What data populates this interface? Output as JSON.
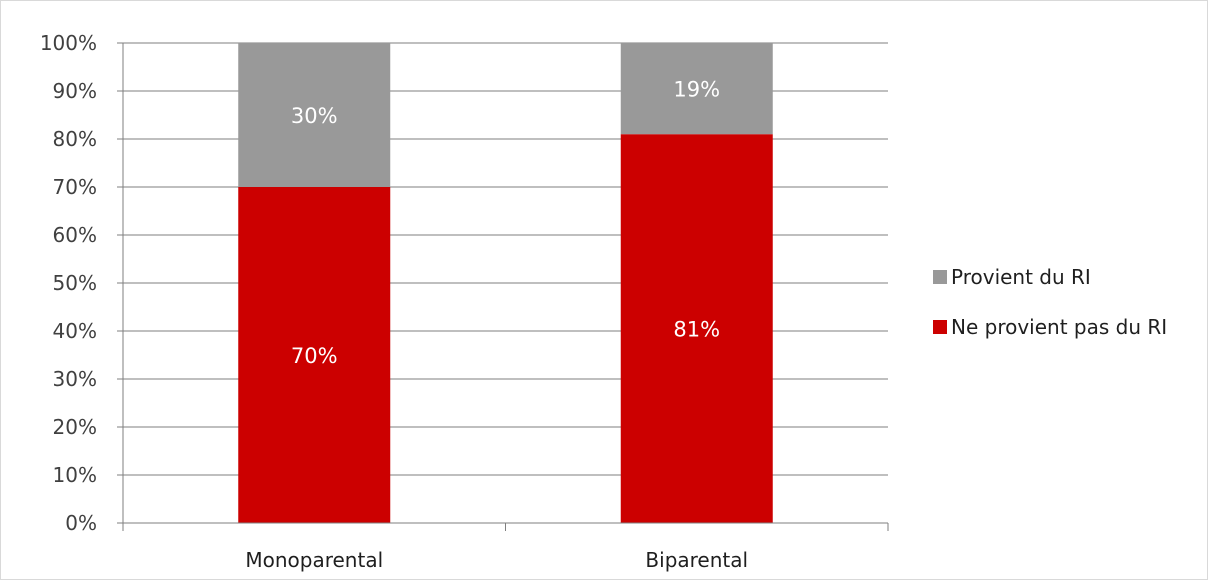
{
  "chart_data": {
    "type": "bar",
    "stacked": true,
    "percent_stacked": true,
    "categories": [
      "Monoparental",
      "Biparental"
    ],
    "series": [
      {
        "name": "Ne provient pas du RI",
        "values": [
          70,
          81
        ],
        "labels": [
          "70%",
          "81%"
        ],
        "color": "#cc0000"
      },
      {
        "name": "Provient du RI",
        "values": [
          30,
          19
        ],
        "labels": [
          "30%",
          "19%"
        ],
        "color": "#999999"
      }
    ],
    "legend_order": [
      1,
      0
    ],
    "ylim": [
      0,
      100
    ],
    "yticks": [
      0,
      10,
      20,
      30,
      40,
      50,
      60,
      70,
      80,
      90,
      100
    ],
    "ytick_labels": [
      "0%",
      "10%",
      "20%",
      "30%",
      "40%",
      "50%",
      "60%",
      "70%",
      "80%",
      "90%",
      "100%"
    ],
    "grid": true,
    "legend_position": "right",
    "gridline_color": "#7f7f7f"
  }
}
